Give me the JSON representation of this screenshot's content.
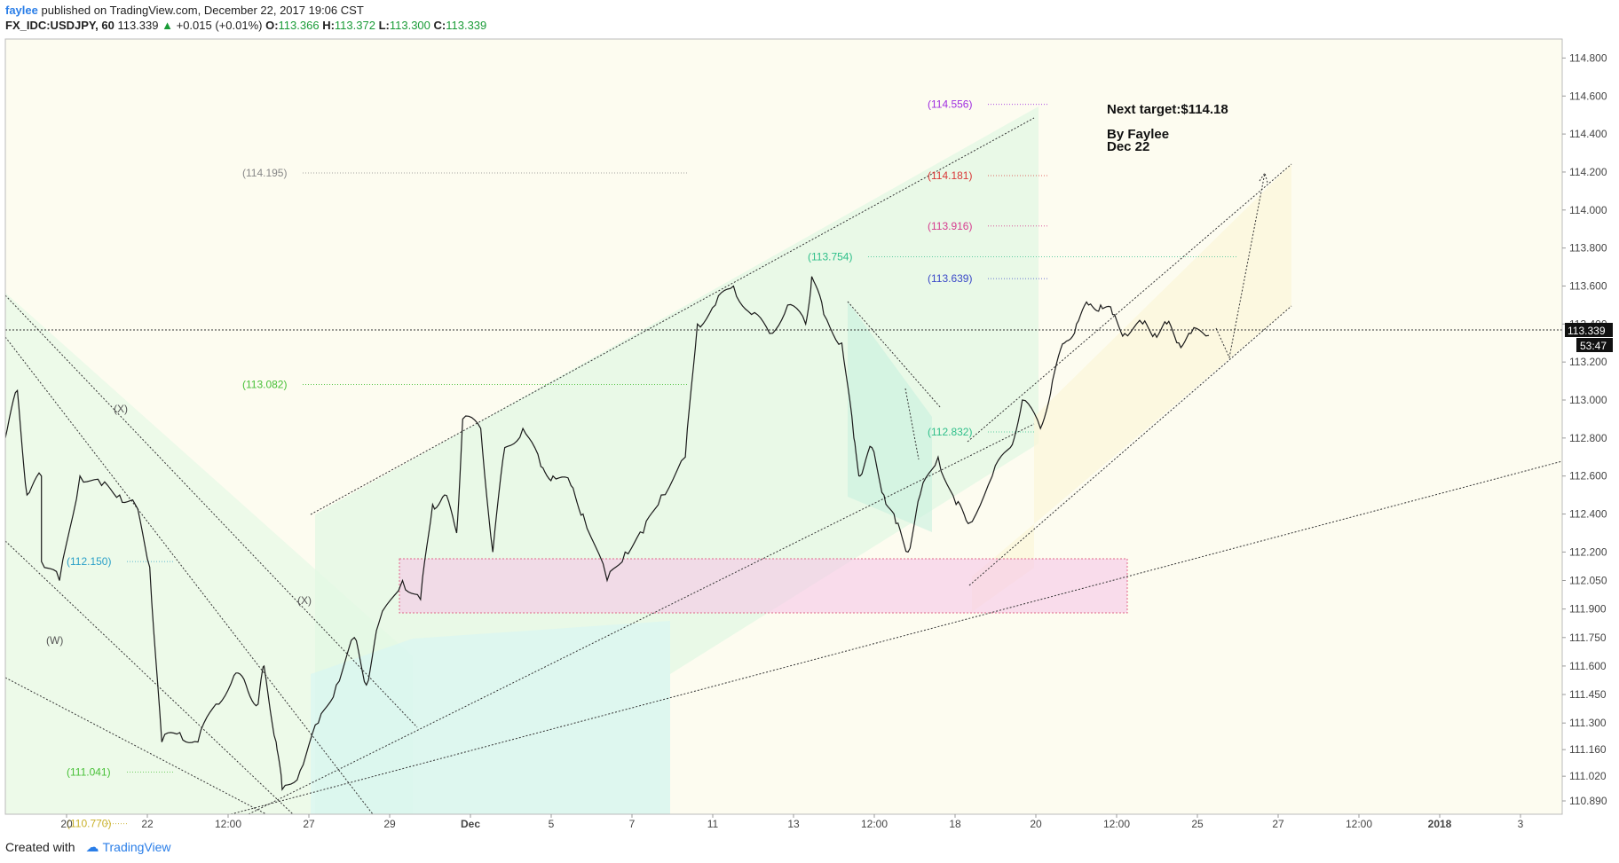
{
  "header": {
    "publisher": "faylee",
    "published_text": "published on TradingView.com, December 22, 2017 19:06 CST",
    "symbol": "FX_IDC:USDJPY, 60",
    "last": "113.339",
    "change_arrow": "▲",
    "change": "+0.015 (+0.01%)",
    "o_label": "O:",
    "o": "113.366",
    "h_label": "H:",
    "h": "113.372",
    "l_label": "L:",
    "l": "113.300",
    "c_label": "C:",
    "c": "113.339"
  },
  "footer": {
    "created_with": "Created with",
    "brand": "TradingView",
    "brand_icon": "cloud-icon"
  },
  "colors": {
    "background": "#fdfcf0",
    "up_green": "#1a9b37",
    "brand_blue": "#2a7ee8",
    "price_line": "#1a1a1a",
    "zone_fill": "#f6c6e8",
    "zone_border": "#e0688a"
  },
  "annotations": {
    "next_target": "Next target:$114.18",
    "author": "By Faylee",
    "date": "Dec 22"
  },
  "chart_data": {
    "type": "line",
    "series_label": "FX_IDC:USDJPY, 60",
    "x_ticks": [
      "20",
      "22",
      "12:00",
      "27",
      "29",
      "Dec",
      "5",
      "7",
      "11",
      "13",
      "12:00",
      "18",
      "20",
      "12:00",
      "25",
      "27",
      "12:00",
      "2018",
      "3"
    ],
    "y_ticks": [
      "114.800",
      "114.600",
      "114.400",
      "114.200",
      "114.000",
      "113.800",
      "113.600",
      "113.400",
      "113.200",
      "113.000",
      "112.800",
      "112.600",
      "112.400",
      "112.200",
      "112.050",
      "111.900",
      "111.750",
      "111.600",
      "111.450",
      "111.300",
      "111.160",
      "111.020",
      "110.890"
    ],
    "ylim": [
      110.82,
      114.9
    ],
    "last_price": "113.339",
    "countdown": "53:47",
    "fib_levels": [
      {
        "label": "(114.556)",
        "value": 114.556,
        "color": "#a02ee0"
      },
      {
        "label": "(114.195)",
        "value": 114.195,
        "color": "#888888"
      },
      {
        "label": "(114.181)",
        "value": 114.181,
        "color": "#d93838"
      },
      {
        "label": "(113.916)",
        "value": 113.916,
        "color": "#d63c8f"
      },
      {
        "label": "(113.754)",
        "value": 113.754,
        "color": "#2fbf8a"
      },
      {
        "label": "(113.639)",
        "value": 113.639,
        "color": "#3a48c8"
      },
      {
        "label": "(113.082)",
        "value": 113.082,
        "color": "#48c038"
      },
      {
        "label": "(112.832)",
        "value": 112.832,
        "color": "#2fbf8a"
      },
      {
        "label": "(112.150)",
        "value": 112.15,
        "color": "#2aa0c8"
      },
      {
        "label": "(111.041)",
        "value": 111.041,
        "color": "#48c038"
      },
      {
        "label": "(110.770)",
        "value": 110.77,
        "color": "#c8b028"
      }
    ],
    "wave_labels": [
      "(X)",
      "(X)",
      "(W)"
    ],
    "price_path": [
      [
        0,
        112.8
      ],
      [
        0.01,
        113.05
      ],
      [
        0.018,
        112.5
      ],
      [
        0.03,
        112.6
      ],
      [
        0.03,
        112.15
      ],
      [
        0.045,
        112.05
      ],
      [
        0.062,
        112.6
      ],
      [
        0.08,
        112.55
      ],
      [
        0.095,
        112.5
      ],
      [
        0.108,
        112.45
      ],
      [
        0.12,
        112.12
      ],
      [
        0.13,
        111.2
      ],
      [
        0.145,
        111.25
      ],
      [
        0.16,
        111.2
      ],
      [
        0.175,
        111.4
      ],
      [
        0.19,
        111.55
      ],
      [
        0.2,
        111.5
      ],
      [
        0.21,
        111.4
      ],
      [
        0.215,
        111.6
      ],
      [
        0.225,
        111.2
      ],
      [
        0.23,
        110.95
      ],
      [
        0.245,
        111.05
      ],
      [
        0.26,
        111.3
      ],
      [
        0.275,
        111.5
      ],
      [
        0.29,
        111.75
      ],
      [
        0.3,
        111.5
      ],
      [
        0.31,
        111.82
      ],
      [
        0.33,
        112.05
      ],
      [
        0.345,
        111.95
      ],
      [
        0.355,
        112.45
      ],
      [
        0.365,
        112.5
      ],
      [
        0.375,
        112.3
      ],
      [
        0.38,
        112.9
      ],
      [
        0.395,
        112.85
      ],
      [
        0.405,
        112.2
      ],
      [
        0.415,
        112.75
      ],
      [
        0.43,
        112.85
      ],
      [
        0.445,
        112.65
      ],
      [
        0.455,
        112.6
      ],
      [
        0.47,
        112.55
      ],
      [
        0.48,
        112.4
      ],
      [
        0.5,
        112.05
      ],
      [
        0.515,
        112.2
      ],
      [
        0.53,
        112.3
      ],
      [
        0.545,
        112.5
      ],
      [
        0.565,
        112.7
      ],
      [
        0.575,
        113.4
      ],
      [
        0.59,
        113.5
      ],
      [
        0.605,
        113.6
      ],
      [
        0.62,
        113.45
      ],
      [
        0.635,
        113.35
      ],
      [
        0.65,
        113.5
      ],
      [
        0.665,
        113.4
      ],
      [
        0.67,
        113.65
      ],
      [
        0.68,
        113.45
      ],
      [
        0.695,
        113.3
      ],
      [
        0.705,
        112.8
      ],
      [
        0.71,
        112.6
      ],
      [
        0.72,
        112.75
      ],
      [
        0.73,
        112.5
      ],
      [
        0.74,
        112.35
      ],
      [
        0.75,
        112.2
      ],
      [
        0.76,
        112.5
      ],
      [
        0.775,
        112.7
      ],
      [
        0.79,
        112.45
      ],
      [
        0.8,
        112.35
      ],
      [
        0.82,
        112.6
      ],
      [
        0.835,
        112.75
      ],
      [
        0.845,
        113.0
      ],
      [
        0.86,
        112.85
      ],
      [
        0.87,
        113.1
      ],
      [
        0.88,
        113.3
      ],
      [
        0.89,
        113.4
      ],
      [
        0.9,
        113.5
      ],
      [
        0.91,
        113.5
      ],
      [
        0.92,
        113.45
      ],
      [
        0.93,
        113.35
      ],
      [
        0.945,
        113.4
      ],
      [
        0.955,
        113.35
      ],
      [
        0.965,
        113.4
      ],
      [
        0.975,
        113.3
      ],
      [
        0.985,
        113.35
      ],
      [
        1.0,
        113.34
      ]
    ]
  }
}
